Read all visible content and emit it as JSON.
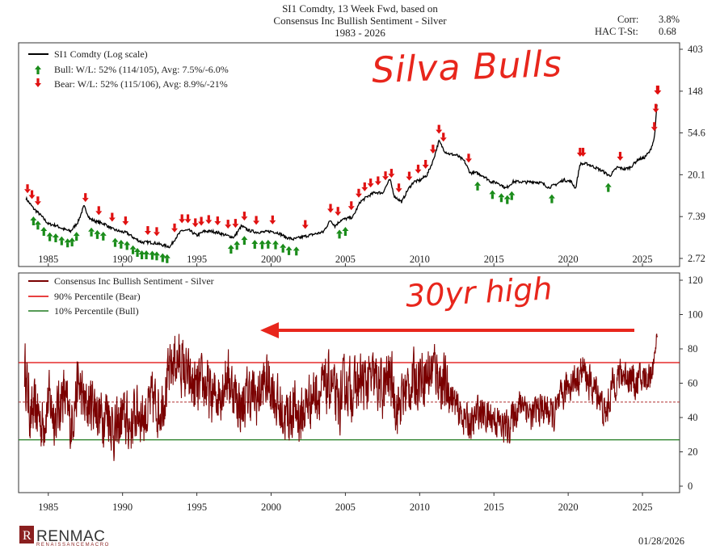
{
  "header": {
    "title_line1": "SI1 Comdty, 13 Week Fwd, based on",
    "title_line2": "Consensus Inc Bullish Sentiment - Silver",
    "title_line3": "1983 - 2026",
    "corr_label": "Corr:",
    "corr_value": "3.8%",
    "hac_label": "HAC T-St:",
    "hac_value": "0.68"
  },
  "annotations": {
    "top_handwritten": "Silva Bulls",
    "bottom_handwritten": "30yr high",
    "color": "#e8261c"
  },
  "footer": {
    "logo_text": "RENMAC",
    "logo_subtext": "RENAISSANCEMACRO",
    "date": "01/28/2026"
  },
  "colors": {
    "price_line": "#000000",
    "sentiment_line": "#7a0000",
    "bear_line": "#e00000",
    "bull_line": "#1f7a1f",
    "bull_arrow": "#1a8c1a",
    "bear_arrow": "#e01010",
    "mid_line": "#b03030"
  },
  "chart_data": [
    {
      "type": "line",
      "yscale": "log",
      "legend": [
        "SI1 Comdty (Log scale)",
        "Bull:  W/L: 52% (114/105), Avg: 7.5%/-6.0%",
        "Bear:  W/L: 52% (115/106), Avg: 8.9%/-21%"
      ],
      "legend_position": "top-left",
      "ylim": [
        2.72,
        403
      ],
      "y_ticks": [
        2.72,
        7.39,
        20.1,
        54.6,
        148,
        403
      ],
      "y_tick_labels": [
        "2.72",
        "7.39",
        "20.1",
        "54.6",
        "148",
        "403"
      ],
      "xlim": [
        1983,
        2027.5
      ],
      "x_ticks": [
        1985,
        1990,
        1995,
        2000,
        2005,
        2010,
        2015,
        2020,
        2025
      ],
      "x_tick_labels": [
        "1985",
        "1990",
        "1995",
        "2000",
        "2005",
        "2010",
        "2015",
        "2020",
        "2025"
      ],
      "series": [
        {
          "name": "SI1 Comdty (Log scale)",
          "x": [
            1983.5,
            1984.0,
            1984.5,
            1985.0,
            1985.5,
            1986.0,
            1986.5,
            1987.0,
            1987.4,
            1987.8,
            1988.3,
            1988.8,
            1989.3,
            1989.8,
            1990.3,
            1990.8,
            1991.3,
            1991.8,
            1992.3,
            1992.8,
            1993.2,
            1993.6,
            1994.0,
            1994.5,
            1995.0,
            1995.5,
            1996.0,
            1996.5,
            1997.0,
            1997.5,
            1998.0,
            1998.5,
            1999.0,
            1999.5,
            2000.0,
            2000.5,
            2001.0,
            2001.5,
            2002.0,
            2002.5,
            2003.0,
            2003.5,
            2004.0,
            2004.3,
            2004.7,
            2005.0,
            2005.5,
            2006.0,
            2006.5,
            2007.0,
            2007.5,
            2008.0,
            2008.3,
            2008.8,
            2009.2,
            2009.6,
            2010.0,
            2010.5,
            2010.9,
            2011.3,
            2011.7,
            2012.0,
            2012.5,
            2013.0,
            2013.4,
            2013.8,
            2014.3,
            2014.8,
            2015.3,
            2015.8,
            2016.3,
            2016.7,
            2017.2,
            2017.7,
            2018.2,
            2018.7,
            2019.2,
            2019.7,
            2020.2,
            2020.5,
            2020.8,
            2021.3,
            2021.8,
            2022.3,
            2022.8,
            2023.3,
            2023.8,
            2024.2,
            2024.7,
            2025.1,
            2025.5,
            2025.8,
            2026.0
          ],
          "values": [
            11.4,
            9.0,
            7.6,
            6.2,
            6.0,
            5.5,
            5.2,
            6.5,
            9.5,
            7.0,
            6.5,
            6.2,
            5.5,
            5.2,
            5.0,
            4.4,
            4.0,
            4.0,
            3.9,
            3.7,
            3.6,
            4.5,
            5.3,
            5.3,
            4.7,
            5.2,
            5.2,
            5.0,
            4.7,
            4.5,
            5.9,
            5.3,
            5.1,
            5.1,
            5.2,
            5.0,
            4.5,
            4.3,
            4.5,
            4.7,
            4.9,
            5.1,
            6.8,
            5.9,
            6.8,
            7.0,
            7.3,
            10.5,
            12.0,
            13.2,
            13.0,
            18.0,
            12.0,
            10.5,
            14.0,
            17.0,
            17.5,
            20.0,
            28.0,
            45.0,
            35.0,
            33.0,
            32.0,
            28.0,
            21.0,
            21.0,
            19.5,
            17.0,
            16.5,
            14.5,
            17.0,
            17.0,
            16.8,
            17.0,
            16.5,
            14.8,
            16.0,
            17.8,
            17.0,
            14.5,
            26.0,
            26.0,
            24.0,
            22.0,
            19.5,
            24.0,
            23.0,
            24.0,
            29.0,
            30.0,
            35.0,
            48.0,
            115.0
          ]
        }
      ],
      "bull_signals": [
        1984.0,
        1984.3,
        1984.7,
        1985.1,
        1985.5,
        1985.9,
        1986.3,
        1986.6,
        1986.9,
        1987.9,
        1988.3,
        1988.7,
        1989.5,
        1989.9,
        1990.3,
        1990.7,
        1991.0,
        1991.3,
        1991.6,
        1992.0,
        1992.3,
        1992.7,
        1993.0,
        1997.3,
        1997.7,
        1998.2,
        1998.9,
        1999.4,
        1999.8,
        2000.3,
        2000.8,
        2001.2,
        2001.7,
        2004.6,
        2005.0,
        2013.9,
        2014.9,
        2015.5,
        2015.9,
        2016.2,
        2018.9,
        2022.7
      ],
      "bear_signals": [
        1983.6,
        1983.9,
        1984.3,
        1987.5,
        1988.4,
        1989.3,
        1990.2,
        1991.7,
        1992.3,
        1993.5,
        1994.0,
        1994.4,
        1994.9,
        1995.3,
        1995.8,
        1996.4,
        1997.1,
        1997.6,
        1998.2,
        1999.0,
        2000.1,
        2002.3,
        2004.0,
        2004.5,
        2005.4,
        2005.9,
        2006.3,
        2006.7,
        2007.2,
        2007.7,
        2008.1,
        2008.6,
        2009.3,
        2009.9,
        2010.4,
        2010.9,
        2011.3,
        2011.6,
        2013.3,
        2020.8,
        2021.0,
        2023.5,
        2025.8,
        2025.9,
        2026.0,
        2026.05
      ]
    },
    {
      "type": "line",
      "legend": [
        "Consensus Inc Bullish Sentiment - Silver",
        "90% Percentile (Bear)",
        "10% Percentile (Bull)"
      ],
      "legend_position": "top-left",
      "ylim": [
        -2,
        125
      ],
      "y_ticks": [
        0,
        20,
        40,
        60,
        80,
        100,
        120
      ],
      "y_tick_labels": [
        "0",
        "20",
        "40",
        "60",
        "80",
        "100",
        "120"
      ],
      "xlim": [
        1983,
        2027.5
      ],
      "x_ticks": [
        1985,
        1990,
        1995,
        2000,
        2005,
        2010,
        2015,
        2020,
        2025
      ],
      "x_tick_labels": [
        "1985",
        "1990",
        "1995",
        "2000",
        "2005",
        "2010",
        "2015",
        "2020",
        "2025"
      ],
      "bear_threshold": 72,
      "bull_threshold": 27,
      "median": 49,
      "anchors_x": [
        1983.4,
        1983.8,
        1984.2,
        1984.6,
        1985.0,
        1985.5,
        1986.0,
        1986.5,
        1987.0,
        1987.5,
        1988.0,
        1988.5,
        1989.0,
        1989.5,
        1990.0,
        1990.5,
        1991.0,
        1991.5,
        1992.0,
        1992.5,
        1993.0,
        1993.5,
        1994.0,
        1994.5,
        1995.0,
        1995.5,
        1996.0,
        1996.5,
        1997.0,
        1997.5,
        1998.0,
        1998.5,
        1999.0,
        1999.5,
        2000.0,
        2000.5,
        2001.0,
        2001.5,
        2002.0,
        2002.5,
        2003.0,
        2003.5,
        2004.0,
        2004.5,
        2005.0,
        2005.5,
        2006.0,
        2006.5,
        2007.0,
        2007.5,
        2008.0,
        2008.5,
        2009.0,
        2009.5,
        2010.0,
        2010.5,
        2011.0,
        2011.5,
        2012.0,
        2012.5,
        2013.0,
        2013.5,
        2014.0,
        2014.5,
        2015.0,
        2015.5,
        2016.0,
        2016.5,
        2017.0,
        2017.5,
        2018.0,
        2018.5,
        2019.0,
        2019.5,
        2020.0,
        2020.5,
        2021.0,
        2021.5,
        2022.0,
        2022.5,
        2023.0,
        2023.5,
        2024.0,
        2024.5,
        2025.0,
        2025.5,
        2025.8,
        2026.0
      ],
      "anchors_y": [
        70,
        40,
        45,
        35,
        50,
        40,
        55,
        35,
        60,
        45,
        50,
        40,
        45,
        30,
        40,
        35,
        45,
        40,
        50,
        45,
        60,
        75,
        70,
        60,
        55,
        60,
        50,
        55,
        65,
        55,
        45,
        55,
        50,
        60,
        60,
        45,
        40,
        45,
        40,
        50,
        55,
        55,
        60,
        45,
        60,
        55,
        60,
        60,
        62,
        55,
        65,
        45,
        55,
        60,
        65,
        65,
        70,
        60,
        55,
        45,
        40,
        35,
        45,
        40,
        40,
        35,
        35,
        45,
        50,
        40,
        45,
        45,
        40,
        50,
        60,
        62,
        68,
        58,
        55,
        40,
        60,
        65,
        65,
        60,
        62,
        65,
        75,
        90
      ],
      "description": "Weekly series oscillating mostly between ~10 and ~95, reaching a 30-year high near 90 in early 2026."
    }
  ]
}
